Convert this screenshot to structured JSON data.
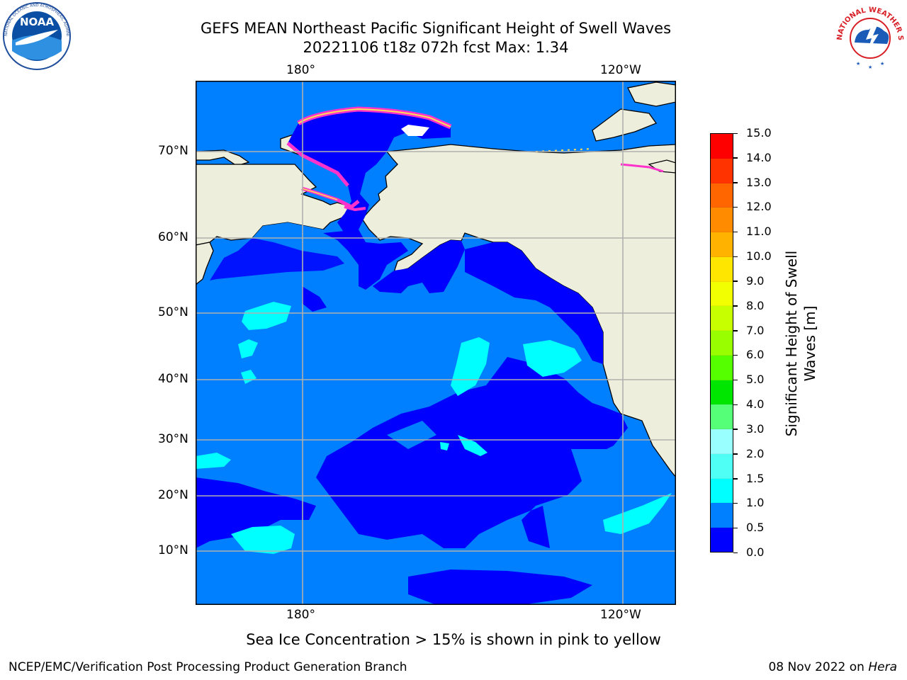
{
  "header": {
    "title_line1": "GEFS MEAN Northeast Pacific Significant Height of Swell Waves",
    "title_line2": "20221106 t18z 072h fcst   Max: 1.34"
  },
  "logos": {
    "noaa": {
      "text": "NOAA",
      "ring_text": "NATIONAL OCEANIC AND ATMOSPHERIC ADMINISTRATION · U.S. DEPARTMENT OF COMMERCE"
    },
    "nws": {
      "ring_text": "NATIONAL WEATHER SERVICE"
    }
  },
  "map": {
    "lon_labels_top": [
      "180°",
      "120°W"
    ],
    "lon_labels_bottom": [
      "180°",
      "120°W"
    ],
    "lat_labels": [
      "70°N",
      "60°N",
      "50°N",
      "40°N",
      "30°N",
      "20°N",
      "10°N"
    ],
    "colors": {
      "land": "#eeeedc",
      "ocean_0": "#0000ff",
      "ocean_05": "#0080ff",
      "ocean_10": "#00ffff",
      "ocean_15": "#4ffff5",
      "ice_pink": "#ff33cc",
      "ice_yellow": "#ffdd55"
    }
  },
  "colorbar": {
    "ticks": [
      "15.0",
      "14.0",
      "13.0",
      "12.0",
      "11.0",
      "10.0",
      "9.0",
      "8.0",
      "7.0",
      "6.0",
      "5.0",
      "4.0",
      "3.0",
      "2.0",
      "1.5",
      "1.0",
      "0.5",
      "0.0"
    ],
    "colors": [
      "#ff0000",
      "#ff3300",
      "#ff6600",
      "#ff8c00",
      "#ffb300",
      "#ffe600",
      "#f2ff00",
      "#c8ff00",
      "#99ff00",
      "#55ff00",
      "#00e600",
      "#55ff77",
      "#99ffff",
      "#4ffff5",
      "#00ffff",
      "#0080ff",
      "#0000ff"
    ],
    "title_line1": "Significant Height of Swell",
    "title_line2": "Waves [m]"
  },
  "caption": "Sea Ice Concentration > 15% is shown in pink to yellow",
  "footer": {
    "left": "NCEP/EMC/Verification Post Processing Product Generation Branch",
    "right_date": "08 Nov 2022 on ",
    "right_host": "Hera"
  }
}
